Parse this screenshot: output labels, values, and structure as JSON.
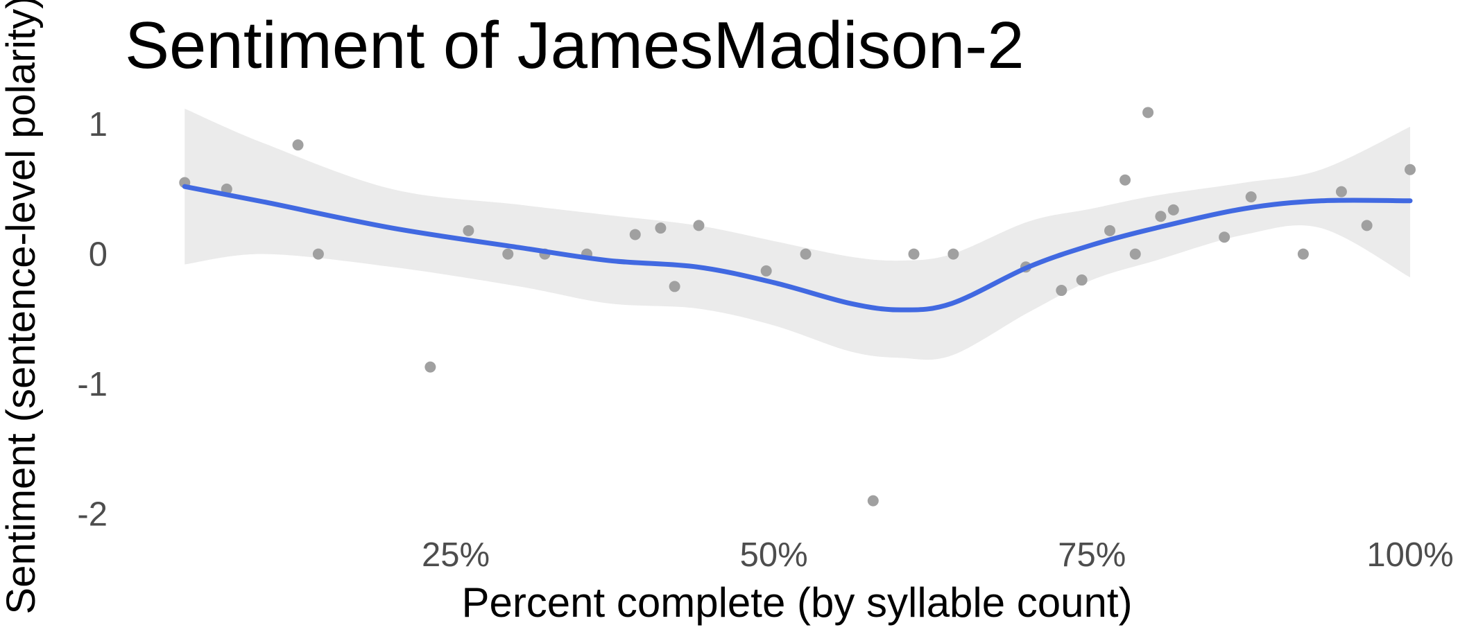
{
  "chart_data": {
    "type": "scatter",
    "title": "Sentiment of JamesMadison-2",
    "x_label": "Percent complete (by syllable count)",
    "y_label": "Sentiment (sentence-level polarity)",
    "xlim": [
      0,
      100
    ],
    "ylim": [
      -2.1,
      1.2
    ],
    "xticks": [
      {
        "value": 25,
        "label": "25%"
      },
      {
        "value": 50,
        "label": "50%"
      },
      {
        "value": 75,
        "label": "75%"
      },
      {
        "value": 100,
        "label": "100%"
      }
    ],
    "yticks": [
      -2,
      -1,
      0,
      1
    ],
    "grid": false,
    "points": {
      "color": "#a0a0a0",
      "x": [
        3.7,
        7.0,
        12.6,
        14.2,
        23.0,
        26.0,
        29.1,
        32.0,
        35.3,
        39.1,
        41.1,
        42.2,
        44.1,
        49.4,
        52.5,
        57.8,
        61.0,
        64.1,
        69.8,
        72.6,
        74.2,
        76.4,
        77.6,
        78.4,
        79.4,
        80.4,
        81.4,
        85.4,
        87.5,
        91.6,
        94.6,
        96.6,
        100
      ],
      "y": [
        0.55,
        0.5,
        0.84,
        0,
        -0.87,
        0.18,
        0,
        0,
        0,
        0.15,
        0.2,
        -0.25,
        0.22,
        -0.13,
        0,
        -1.9,
        0,
        0,
        -0.1,
        -0.28,
        -0.2,
        0.18,
        0.57,
        0,
        1.09,
        0.29,
        0.34,
        0.13,
        0.44,
        0,
        0.48,
        0.22,
        0.65
      ]
    },
    "smooth": {
      "color": "#4169e1",
      "band_color": "#ebebeb",
      "x": [
        3.7,
        10,
        20,
        30,
        37,
        44,
        50,
        56,
        60,
        64,
        70,
        75,
        80,
        87,
        93,
        100
      ],
      "y": [
        0.52,
        0.4,
        0.2,
        0.05,
        -0.05,
        -0.1,
        -0.22,
        -0.38,
        -0.43,
        -0.38,
        -0.1,
        0.07,
        0.2,
        0.35,
        0.41,
        0.41
      ],
      "lower": [
        -0.08,
        0.0,
        -0.1,
        -0.25,
        -0.38,
        -0.42,
        -0.55,
        -0.75,
        -0.8,
        -0.78,
        -0.45,
        -0.2,
        -0.05,
        0.15,
        0.2,
        -0.18
      ],
      "upper": [
        1.12,
        0.85,
        0.5,
        0.38,
        0.3,
        0.22,
        0.1,
        -0.02,
        -0.05,
        0.0,
        0.25,
        0.35,
        0.45,
        0.55,
        0.65,
        0.98
      ]
    }
  }
}
